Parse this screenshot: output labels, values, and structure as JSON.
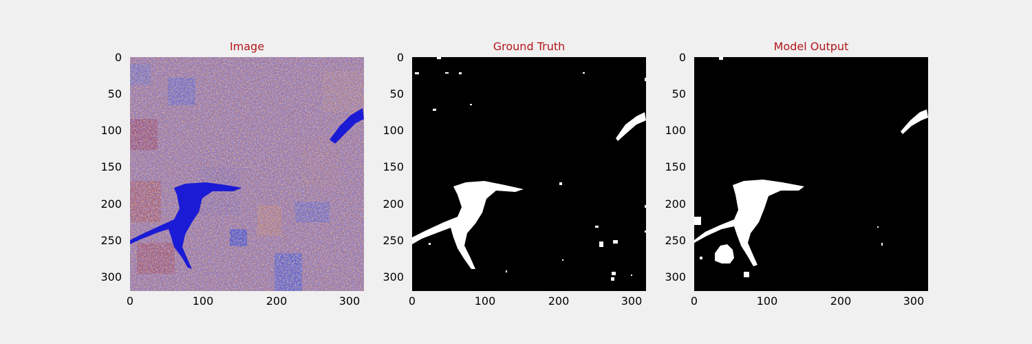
{
  "figure": {
    "panels": [
      {
        "title": "Image",
        "kind": "image"
      },
      {
        "title": "Ground Truth",
        "kind": "mask"
      },
      {
        "title": "Model Output",
        "kind": "mask"
      }
    ],
    "x_ticks": [
      "0",
      "100",
      "200",
      "300"
    ],
    "y_ticks": [
      "0",
      "50",
      "100",
      "150",
      "200",
      "250",
      "300"
    ]
  },
  "colors": {
    "figure_bg": "#f0f0f0",
    "title": "#b3151a",
    "mask_bg": "#000000",
    "mask_fg": "#ffffff",
    "image_base": "#9c7aa8",
    "image_water": "#1b1bd6",
    "image_blue_field": "#4a5ad8",
    "image_red_field": "#b05a6a",
    "image_orange_speckle": "#d7954a"
  },
  "axes": {
    "xlim": [
      0,
      320
    ],
    "ylim": [
      320,
      0
    ]
  }
}
